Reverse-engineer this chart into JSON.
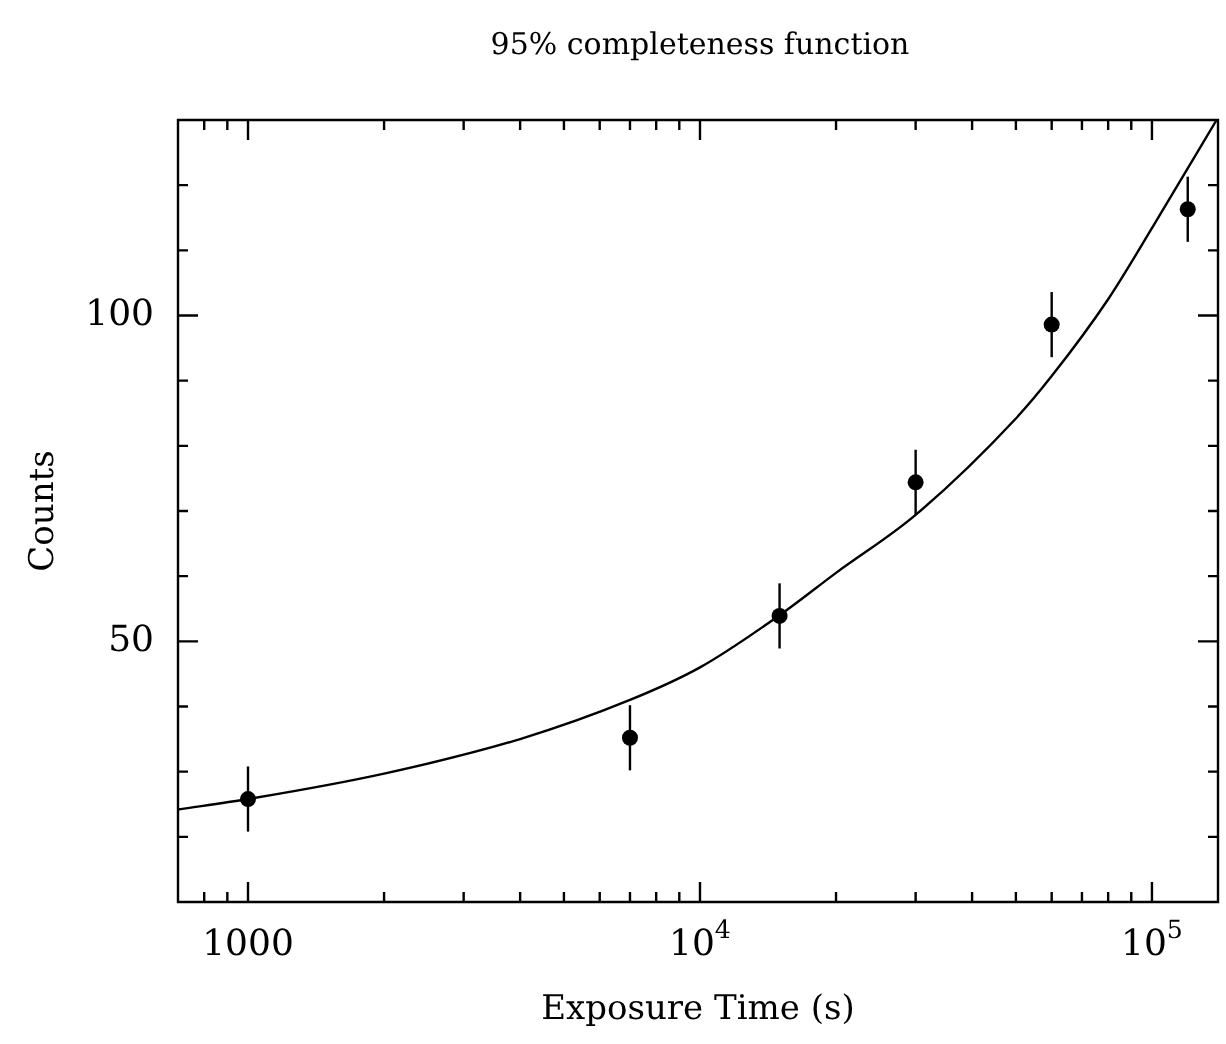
{
  "chart_data": {
    "type": "scatter",
    "title": "95% completeness function",
    "xlabel": "Exposure Time (s)",
    "ylabel": "Counts",
    "log": "x",
    "xlim": [
      700,
      140000
    ],
    "ylim": [
      10,
      130
    ],
    "xticks": [
      {
        "value": 800,
        "label": null
      },
      {
        "value": 900,
        "label": null
      },
      {
        "value": 1000,
        "label": "1000"
      },
      {
        "value": 2000,
        "label": null
      },
      {
        "value": 3000,
        "label": null
      },
      {
        "value": 4000,
        "label": null
      },
      {
        "value": 5000,
        "label": null
      },
      {
        "value": 6000,
        "label": null
      },
      {
        "value": 7000,
        "label": null
      },
      {
        "value": 8000,
        "label": null
      },
      {
        "value": 9000,
        "label": null
      },
      {
        "value": 10000,
        "label": "10$^{4}$"
      },
      {
        "value": 20000,
        "label": null
      },
      {
        "value": 30000,
        "label": null
      },
      {
        "value": 40000,
        "label": null
      },
      {
        "value": 50000,
        "label": null
      },
      {
        "value": 60000,
        "label": null
      },
      {
        "value": 70000,
        "label": null
      },
      {
        "value": 80000,
        "label": null
      },
      {
        "value": 90000,
        "label": null
      },
      {
        "value": 100000,
        "label": "10$^{5}$"
      }
    ],
    "yticks": [
      {
        "value": 20,
        "label": null
      },
      {
        "value": 30,
        "label": null
      },
      {
        "value": 40,
        "label": null
      },
      50,
      {
        "value": 60,
        "label": null
      },
      {
        "value": 70,
        "label": null
      },
      {
        "value": 80,
        "label": null
      },
      {
        "value": 90,
        "label": null
      },
      100,
      {
        "value": 110,
        "label": null
      },
      {
        "value": 120,
        "label": null
      }
    ],
    "series": [
      {
        "type": "scatter",
        "color": "#000000",
        "marker": "circle",
        "x": [
          1000,
          7000,
          15000,
          30000,
          60000,
          120000
        ],
        "values": [
          25.8,
          35.2,
          53.9,
          74.4,
          98.6,
          116.3
        ],
        "errors": [
          5,
          5,
          5,
          5,
          5,
          5
        ]
      },
      {
        "type": "line",
        "color": "#000000",
        "marker": "none",
        "line_style": "solid",
        "x": [
          700,
          1000,
          2000,
          4000,
          7000,
          10000,
          15000,
          20000,
          30000,
          50000,
          60000,
          80000,
          100000,
          139000
        ],
        "values": [
          24.2,
          25.8,
          29.7,
          35.0,
          41.0,
          46.0,
          54.0,
          60.5,
          69.4,
          84.2,
          90.7,
          102.5,
          113.4,
          130
        ]
      }
    ]
  }
}
